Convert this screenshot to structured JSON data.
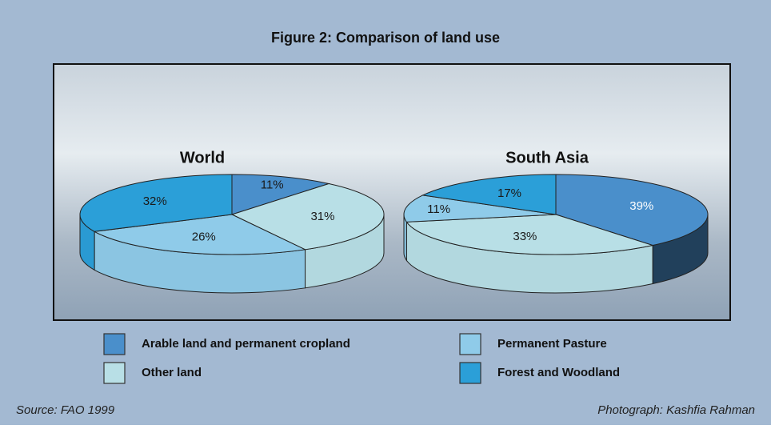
{
  "title": "Figure 2: Comparison of land use",
  "chart_data": [
    {
      "type": "pie",
      "title": "World",
      "categories": [
        "Arable land and permanent cropland",
        "Other land",
        "Permanent Pasture",
        "Forest and Woodland"
      ],
      "values": [
        11,
        31,
        26,
        32
      ],
      "value_labels": [
        "11%",
        "31%",
        "26%",
        "32%"
      ],
      "colors": [
        "#4a8fcb",
        "#b8dfe6",
        "#8fcbe9",
        "#2b9fd8"
      ]
    },
    {
      "type": "pie",
      "title": "South Asia",
      "categories": [
        "Arable land and permanent cropland",
        "Other land",
        "Permanent Pasture",
        "Forest and Woodland"
      ],
      "values": [
        39,
        33,
        11,
        17
      ],
      "value_labels": [
        "39%",
        "33%",
        "11%",
        "17%"
      ],
      "colors": [
        "#4a8fcb",
        "#b8dfe6",
        "#8fcbe9",
        "#2b9fd8"
      ]
    }
  ],
  "source": "Source: FAO 1999",
  "credit": "Photograph: Kashfia Rahman"
}
